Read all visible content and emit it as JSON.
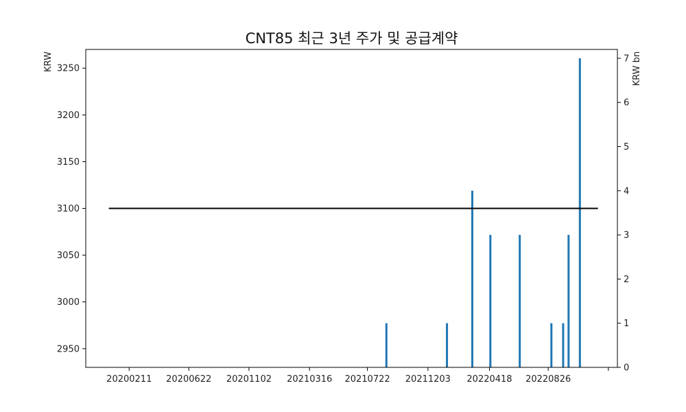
{
  "chart_data": {
    "type": "bar+line",
    "title": "CNT85 최근 3년 주가 및 공급계약",
    "left_axis": {
      "label": "KRW",
      "ticks": [
        2950,
        3000,
        3050,
        3100,
        3150,
        3200,
        3250
      ],
      "ylim": [
        2930,
        3270
      ]
    },
    "right_axis": {
      "label": "KRW bn",
      "ticks": [
        0,
        1,
        2,
        3,
        4,
        5,
        6,
        7
      ],
      "ylim": [
        0,
        7.2
      ]
    },
    "x_axis": {
      "ticks": [
        "20200211",
        "20200622",
        "20201102",
        "20210316",
        "20210722",
        "20211203",
        "20220418",
        "20220826",
        ""
      ],
      "tick_dates": [
        "2020-02-11",
        "2020-06-22",
        "2020-11-02",
        "2021-03-16",
        "2021-07-22",
        "2021-12-03",
        "2022-04-18",
        "2022-08-26",
        "2023-01-06"
      ],
      "range": [
        "2019-11-07",
        "2023-01-26"
      ]
    },
    "price_series": {
      "color": "#000000",
      "points": [
        {
          "date": "2019-12-28",
          "value": 3100
        },
        {
          "date": "2022-12-14",
          "value": 3100
        }
      ]
    },
    "contract_series": {
      "color": "#1f77b4",
      "bars": [
        {
          "date": "2021-09-02",
          "value": 1
        },
        {
          "date": "2022-01-14",
          "value": 1
        },
        {
          "date": "2022-03-11",
          "value": 4
        },
        {
          "date": "2022-04-20",
          "value": 3
        },
        {
          "date": "2022-06-24",
          "value": 3
        },
        {
          "date": "2022-09-02",
          "value": 1
        },
        {
          "date": "2022-09-28",
          "value": 1
        },
        {
          "date": "2022-10-10",
          "value": 3
        },
        {
          "date": "2022-11-04",
          "value": 7
        }
      ]
    }
  }
}
